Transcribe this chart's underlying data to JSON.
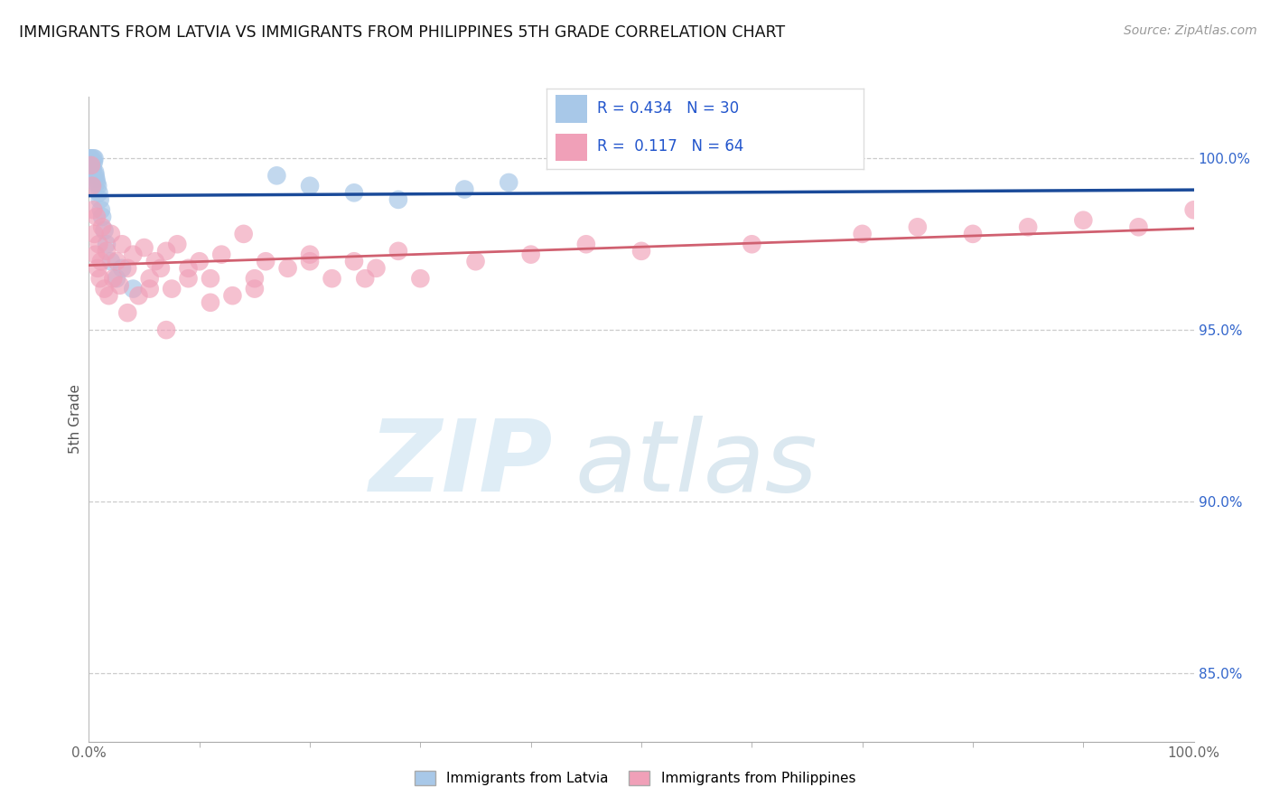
{
  "title": "IMMIGRANTS FROM LATVIA VS IMMIGRANTS FROM PHILIPPINES 5TH GRADE CORRELATION CHART",
  "source": "Source: ZipAtlas.com",
  "ylabel": "5th Grade",
  "right_yticks": [
    100.0,
    95.0,
    90.0,
    85.0
  ],
  "legend_labels": [
    "Immigrants from Latvia",
    "Immigrants from Philippines"
  ],
  "legend_R": [
    0.434,
    0.117
  ],
  "legend_N": [
    30,
    64
  ],
  "blue_color": "#a8c8e8",
  "pink_color": "#f0a0b8",
  "blue_line_color": "#1a4a99",
  "pink_line_color": "#d06070",
  "grid_color": "#cccccc",
  "latvia_x": [
    0.1,
    0.15,
    0.2,
    0.25,
    0.3,
    0.35,
    0.4,
    0.45,
    0.5,
    0.55,
    0.6,
    0.65,
    0.7,
    0.8,
    0.9,
    1.0,
    1.1,
    1.2,
    1.4,
    1.6,
    2.0,
    2.5,
    3.0,
    4.0,
    17.0,
    20.0,
    24.0,
    28.0,
    34.0,
    38.0
  ],
  "latvia_y": [
    100.0,
    100.0,
    100.0,
    99.9,
    99.8,
    99.7,
    100.0,
    99.9,
    100.0,
    99.6,
    99.5,
    99.4,
    99.3,
    99.2,
    99.0,
    98.8,
    98.5,
    98.3,
    97.9,
    97.5,
    97.0,
    96.5,
    96.8,
    96.2,
    99.5,
    99.2,
    99.0,
    98.8,
    99.1,
    99.3
  ],
  "phil_x": [
    0.2,
    0.3,
    0.4,
    0.5,
    0.6,
    0.7,
    0.8,
    0.9,
    1.0,
    1.1,
    1.2,
    1.4,
    1.6,
    1.8,
    2.0,
    2.2,
    2.5,
    2.8,
    3.0,
    3.5,
    4.0,
    4.5,
    5.0,
    5.5,
    6.0,
    6.5,
    7.0,
    7.5,
    8.0,
    9.0,
    10.0,
    11.0,
    12.0,
    13.0,
    14.0,
    15.0,
    16.0,
    18.0,
    20.0,
    22.0,
    24.0,
    26.0,
    28.0,
    30.0,
    35.0,
    40.0,
    45.0,
    50.0,
    60.0,
    70.0,
    75.0,
    80.0,
    85.0,
    90.0,
    95.0,
    100.0,
    3.5,
    5.5,
    7.0,
    9.0,
    11.0,
    15.0,
    20.0,
    25.0
  ],
  "phil_y": [
    99.8,
    99.2,
    98.5,
    97.8,
    97.2,
    98.3,
    96.8,
    97.5,
    96.5,
    97.0,
    98.0,
    96.2,
    97.3,
    96.0,
    97.8,
    96.5,
    97.0,
    96.3,
    97.5,
    96.8,
    97.2,
    96.0,
    97.4,
    96.5,
    97.0,
    96.8,
    97.3,
    96.2,
    97.5,
    96.8,
    97.0,
    96.5,
    97.2,
    96.0,
    97.8,
    96.5,
    97.0,
    96.8,
    97.2,
    96.5,
    97.0,
    96.8,
    97.3,
    96.5,
    97.0,
    97.2,
    97.5,
    97.3,
    97.5,
    97.8,
    98.0,
    97.8,
    98.0,
    98.2,
    98.0,
    98.5,
    95.5,
    96.2,
    95.0,
    96.5,
    95.8,
    96.2,
    97.0,
    96.5
  ]
}
